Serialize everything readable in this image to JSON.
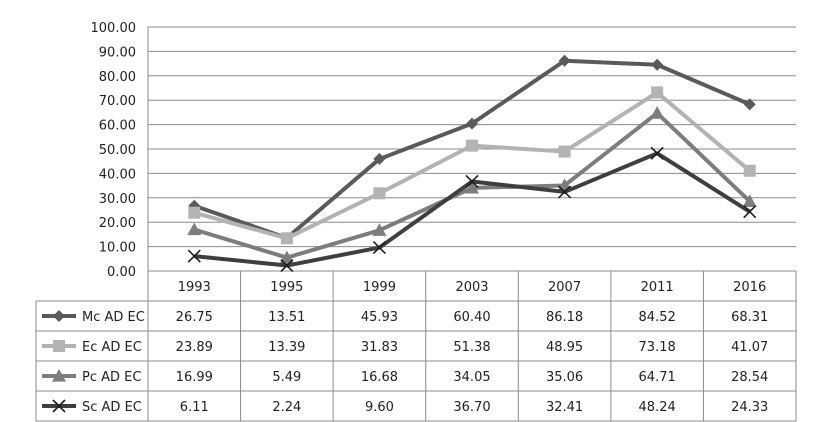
{
  "chart_data": {
    "type": "line",
    "title": "",
    "xlabel": "",
    "ylabel": "",
    "ylim": [
      0,
      100
    ],
    "y_ticks": [
      "0.00",
      "10.00",
      "20.00",
      "30.00",
      "40.00",
      "50.00",
      "60.00",
      "70.00",
      "80.00",
      "90.00",
      "100.00"
    ],
    "categories": [
      "1993",
      "1995",
      "1999",
      "2003",
      "2007",
      "2011",
      "2016"
    ],
    "grid": true,
    "legend": "data-table-left",
    "series": [
      {
        "name": "Mc AD EC",
        "marker": "diamond",
        "color": "#5a5a5a",
        "values": [
          26.75,
          13.51,
          45.93,
          60.4,
          86.18,
          84.52,
          68.31
        ],
        "labels": [
          "26.75",
          "13.51",
          "45.93",
          "60.40",
          "86.18",
          "84.52",
          "68.31"
        ]
      },
      {
        "name": "Ec AD EC",
        "marker": "square",
        "color": "#b3b3b3",
        "values": [
          23.89,
          13.39,
          31.83,
          51.38,
          48.95,
          73.18,
          41.07
        ],
        "labels": [
          "23.89",
          "13.39",
          "31.83",
          "51.38",
          "48.95",
          "73.18",
          "41.07"
        ]
      },
      {
        "name": "Pc AD EC",
        "marker": "triangle",
        "color": "#7d7d7d",
        "values": [
          16.99,
          5.49,
          16.68,
          34.05,
          35.06,
          64.71,
          28.54
        ],
        "labels": [
          "16.99",
          "5.49",
          "16.68",
          "34.05",
          "35.06",
          "64.71",
          "28.54"
        ]
      },
      {
        "name": "Sc AD EC",
        "marker": "x",
        "color": "#3f3f3f",
        "values": [
          6.11,
          2.24,
          9.6,
          36.7,
          32.41,
          48.24,
          24.33
        ],
        "labels": [
          "6.11",
          "2.24",
          "9.60",
          "36.70",
          "32.41",
          "48.24",
          "24.33"
        ]
      }
    ]
  }
}
